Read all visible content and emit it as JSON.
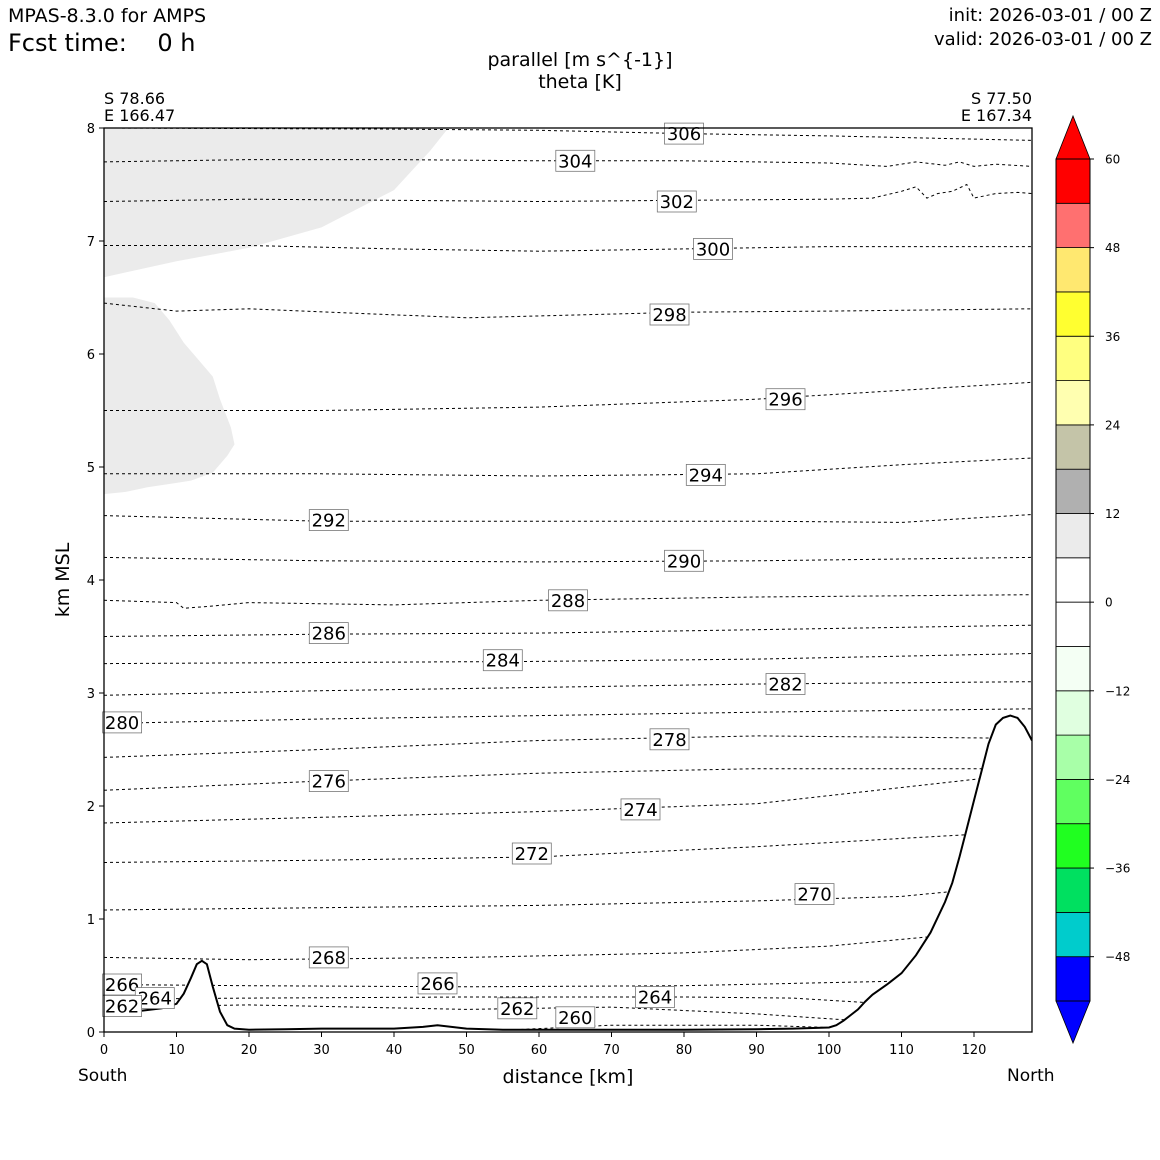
{
  "header": {
    "model": "MPAS-8.3.0 for AMPS",
    "fcst_label": "Fcst time:",
    "fcst_value": "0 h",
    "init": "init: 2026-03-01 / 00 Z",
    "valid": "valid: 2026-03-01 / 00 Z"
  },
  "endpoints": {
    "left_lat": "S 78.66",
    "left_lon": "E 166.47",
    "right_lat": "S 77.50",
    "right_lon": "E 167.34",
    "left_dir": "South",
    "right_dir": "North"
  },
  "chart_data": {
    "type": "line",
    "title": "parallel [m s^{-1}]",
    "subtitle": "theta [K]",
    "xlabel": "distance [km]",
    "ylabel": "km MSL",
    "xlim": [
      0,
      128
    ],
    "ylim": [
      0,
      8
    ],
    "xticks": [
      "0",
      "10",
      "20",
      "30",
      "40",
      "50",
      "60",
      "70",
      "80",
      "90",
      "100",
      "110",
      "120"
    ],
    "yticks": [
      "0",
      "1",
      "2",
      "3",
      "4",
      "5",
      "6",
      "7",
      "8"
    ],
    "terrain": {
      "x": [
        0,
        4,
        8,
        10,
        11,
        12,
        12.8,
        13.5,
        14.2,
        15,
        16,
        17,
        18,
        20,
        25,
        30,
        40,
        44,
        46,
        50,
        55,
        60,
        70,
        80,
        90,
        95,
        100,
        101,
        102,
        103,
        104,
        105,
        106,
        108,
        110,
        112,
        114,
        116,
        117,
        118,
        119,
        120,
        121,
        122,
        123,
        124,
        125,
        126,
        127,
        128
      ],
      "y": [
        0.15,
        0.18,
        0.21,
        0.25,
        0.34,
        0.48,
        0.6,
        0.63,
        0.6,
        0.4,
        0.18,
        0.06,
        0.03,
        0.02,
        0.025,
        0.03,
        0.03,
        0.045,
        0.06,
        0.03,
        0.02,
        0.02,
        0.02,
        0.02,
        0.025,
        0.03,
        0.04,
        0.06,
        0.1,
        0.15,
        0.2,
        0.27,
        0.33,
        0.42,
        0.52,
        0.68,
        0.88,
        1.15,
        1.32,
        1.55,
        1.8,
        2.05,
        2.3,
        2.55,
        2.72,
        2.78,
        2.8,
        2.78,
        2.7,
        2.58
      ]
    },
    "shaded": [
      {
        "category": "6 to 12",
        "color": "#ebebeb",
        "x": [
          0,
          10,
          20,
          30,
          40,
          45,
          47.5,
          0
        ],
        "y": [
          6.68,
          6.82,
          6.94,
          7.12,
          7.45,
          7.8,
          8.0,
          8.0
        ]
      },
      {
        "category": "6 to 12",
        "color": "#ebebeb",
        "x": [
          0,
          4,
          7,
          9,
          11,
          13,
          15,
          16,
          17.5,
          18,
          17,
          15,
          12,
          9,
          6,
          3,
          0
        ],
        "y": [
          6.5,
          6.5,
          6.45,
          6.3,
          6.1,
          5.95,
          5.8,
          5.6,
          5.35,
          5.2,
          5.1,
          4.95,
          4.88,
          4.85,
          4.82,
          4.78,
          4.76
        ]
      }
    ],
    "theta_contours": [
      {
        "theta": 260,
        "x": [
          50,
          70,
          90,
          100
        ],
        "y": [
          0.0,
          0.06,
          0.06,
          0.04
        ]
      },
      {
        "theta": 262,
        "x": [
          0,
          20,
          50,
          70,
          90,
          104
        ],
        "y": [
          0.22,
          0.24,
          0.2,
          0.22,
          0.16,
          0.1
        ]
      },
      {
        "theta": 264,
        "x": [
          0,
          20,
          50,
          80,
          95,
          108
        ],
        "y": [
          0.29,
          0.3,
          0.31,
          0.31,
          0.3,
          0.25
        ]
      },
      {
        "theta": 266,
        "x": [
          0,
          20,
          50,
          80,
          110
        ],
        "y": [
          0.42,
          0.41,
          0.4,
          0.41,
          0.45
        ]
      },
      {
        "theta": 268,
        "x": [
          0,
          20,
          50,
          80,
          100,
          115
        ],
        "y": [
          0.66,
          0.64,
          0.66,
          0.7,
          0.76,
          0.85
        ]
      },
      {
        "theta": 270,
        "x": [
          0,
          30,
          60,
          90,
          110,
          118
        ],
        "y": [
          1.08,
          1.1,
          1.12,
          1.16,
          1.2,
          1.25
        ]
      },
      {
        "theta": 272,
        "x": [
          0,
          30,
          60,
          90,
          120
        ],
        "y": [
          1.5,
          1.52,
          1.55,
          1.64,
          1.75
        ]
      },
      {
        "theta": 274,
        "x": [
          0,
          30,
          60,
          90,
          122
        ],
        "y": [
          1.85,
          1.9,
          1.95,
          2.02,
          2.25
        ]
      },
      {
        "theta": 276,
        "x": [
          0,
          30,
          60,
          90,
          124
        ],
        "y": [
          2.14,
          2.22,
          2.29,
          2.33,
          2.33
        ]
      },
      {
        "theta": 278,
        "x": [
          0,
          30,
          60,
          90,
          125
        ],
        "y": [
          2.43,
          2.5,
          2.58,
          2.62,
          2.6
        ]
      },
      {
        "theta": 280,
        "x": [
          0,
          30,
          60,
          90,
          128
        ],
        "y": [
          2.73,
          2.77,
          2.8,
          2.83,
          2.86
        ]
      },
      {
        "theta": 282,
        "x": [
          0,
          30,
          60,
          90,
          128
        ],
        "y": [
          2.98,
          3.02,
          3.05,
          3.08,
          3.1
        ]
      },
      {
        "theta": 284,
        "x": [
          0,
          30,
          60,
          90,
          128
        ],
        "y": [
          3.26,
          3.27,
          3.28,
          3.3,
          3.35
        ]
      },
      {
        "theta": 286,
        "x": [
          0,
          30,
          60,
          90,
          128
        ],
        "y": [
          3.5,
          3.52,
          3.53,
          3.56,
          3.6
        ]
      },
      {
        "theta": 288,
        "x": [
          0,
          10,
          11,
          15,
          20,
          40,
          60,
          90,
          128
        ],
        "y": [
          3.82,
          3.8,
          3.75,
          3.77,
          3.8,
          3.78,
          3.82,
          3.85,
          3.87
        ]
      },
      {
        "theta": 290,
        "x": [
          0,
          30,
          60,
          90,
          128
        ],
        "y": [
          4.2,
          4.17,
          4.16,
          4.17,
          4.2
        ]
      },
      {
        "theta": 292,
        "x": [
          0,
          30,
          60,
          90,
          110,
          128
        ],
        "y": [
          4.57,
          4.52,
          4.52,
          4.52,
          4.51,
          4.58
        ]
      },
      {
        "theta": 294,
        "x": [
          0,
          30,
          60,
          90,
          110,
          128
        ],
        "y": [
          4.94,
          4.94,
          4.92,
          4.94,
          5.02,
          5.08
        ]
      },
      {
        "theta": 296,
        "x": [
          0,
          30,
          60,
          90,
          128
        ],
        "y": [
          5.5,
          5.5,
          5.53,
          5.6,
          5.75
        ]
      },
      {
        "theta": 298,
        "x": [
          0,
          10,
          20,
          50,
          80,
          100,
          128
        ],
        "y": [
          6.45,
          6.38,
          6.4,
          6.32,
          6.37,
          6.38,
          6.4
        ]
      },
      {
        "theta": 300,
        "x": [
          0,
          20,
          40,
          60,
          80,
          100,
          128
        ],
        "y": [
          6.96,
          6.96,
          6.93,
          6.91,
          6.93,
          6.95,
          6.95
        ]
      },
      {
        "theta": 302,
        "x": [
          0,
          20,
          40,
          60,
          80,
          100,
          106,
          110,
          112,
          113.5,
          115,
          117,
          119,
          120,
          121.5,
          123,
          126,
          128
        ],
        "y": [
          7.35,
          7.37,
          7.36,
          7.35,
          7.36,
          7.37,
          7.38,
          7.44,
          7.48,
          7.38,
          7.42,
          7.44,
          7.5,
          7.38,
          7.4,
          7.42,
          7.43,
          7.42
        ]
      },
      {
        "theta": 304,
        "x": [
          0,
          20,
          40,
          60,
          80,
          100,
          108,
          112,
          116,
          118,
          120,
          123,
          128
        ],
        "y": [
          7.7,
          7.72,
          7.72,
          7.71,
          7.71,
          7.69,
          7.66,
          7.7,
          7.67,
          7.7,
          7.66,
          7.68,
          7.66
        ]
      },
      {
        "theta": 306,
        "x": [
          0,
          40,
          60,
          80,
          100,
          128
        ],
        "y": [
          8.0,
          7.99,
          7.98,
          7.95,
          7.93,
          7.89
        ]
      }
    ],
    "contour_labels": [
      {
        "text": "306",
        "x": 80,
        "y": 7.95
      },
      {
        "text": "304",
        "x": 65,
        "y": 7.71
      },
      {
        "text": "302",
        "x": 79,
        "y": 7.35
      },
      {
        "text": "300",
        "x": 84,
        "y": 6.93
      },
      {
        "text": "298",
        "x": 78,
        "y": 6.35
      },
      {
        "text": "296",
        "x": 94,
        "y": 5.6
      },
      {
        "text": "294",
        "x": 83,
        "y": 4.93
      },
      {
        "text": "292",
        "x": 31,
        "y": 4.53
      },
      {
        "text": "290",
        "x": 80,
        "y": 4.17
      },
      {
        "text": "288",
        "x": 64,
        "y": 3.82
      },
      {
        "text": "286",
        "x": 31,
        "y": 3.53
      },
      {
        "text": "284",
        "x": 55,
        "y": 3.29
      },
      {
        "text": "282",
        "x": 94,
        "y": 3.08
      },
      {
        "text": "280",
        "x": 2.5,
        "y": 2.74
      },
      {
        "text": "278",
        "x": 78,
        "y": 2.59
      },
      {
        "text": "276",
        "x": 31,
        "y": 2.22
      },
      {
        "text": "274",
        "x": 74,
        "y": 1.97
      },
      {
        "text": "272",
        "x": 59,
        "y": 1.58
      },
      {
        "text": "270",
        "x": 98,
        "y": 1.22
      },
      {
        "text": "268",
        "x": 31,
        "y": 0.66
      },
      {
        "text": "266",
        "x": 2.5,
        "y": 0.42
      },
      {
        "text": "266",
        "x": 46,
        "y": 0.43
      },
      {
        "text": "264",
        "x": 7,
        "y": 0.3
      },
      {
        "text": "264",
        "x": 76,
        "y": 0.31
      },
      {
        "text": "262",
        "x": 2.5,
        "y": 0.23
      },
      {
        "text": "262",
        "x": 57,
        "y": 0.21
      },
      {
        "text": "260",
        "x": 65,
        "y": 0.13
      }
    ],
    "colorbar": {
      "colors": [
        "#0000ff",
        "#00cccc",
        "#00e060",
        "#20ff20",
        "#60ff60",
        "#a8ffa8",
        "#e0ffe0",
        "#f4fff4",
        "#ffffff",
        "#ffffff",
        "#ebebeb",
        "#b0b0b0",
        "#c4c4a8",
        "#ffffb0",
        "#ffff80",
        "#ffff30",
        "#ffe870",
        "#ff7070",
        "#ff0000"
      ],
      "min_color": "#0000ff",
      "max_color": "#ff0000",
      "bounds": [
        -54,
        -48,
        -42,
        -36,
        -30,
        -24,
        -18,
        -12,
        -6,
        0,
        6,
        12,
        18,
        24,
        30,
        36,
        42,
        48,
        54,
        60
      ],
      "tick_values": [
        -48,
        -36,
        -24,
        -12,
        0,
        12,
        24,
        36,
        48,
        60
      ],
      "tick_labels": [
        "−48",
        "−36",
        "−24",
        "−12",
        "0",
        "12",
        "24",
        "36",
        "48",
        "60"
      ]
    }
  }
}
